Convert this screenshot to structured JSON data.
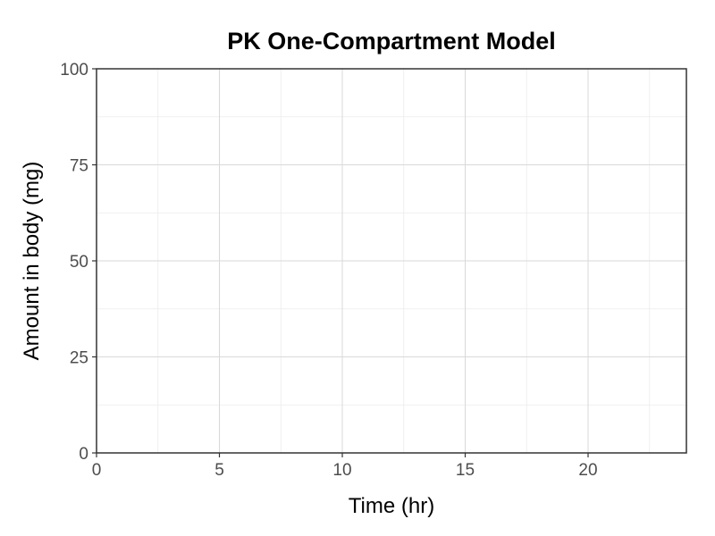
{
  "chart_data": {
    "type": "line",
    "title": "PK One-Compartment Model",
    "xlabel": "Time (hr)",
    "ylabel": "Amount in body (mg)",
    "xlim": [
      0,
      24
    ],
    "ylim": [
      0,
      100
    ],
    "x_ticks": [
      0,
      5,
      10,
      15,
      20
    ],
    "y_ticks": [
      0,
      25,
      50,
      75,
      100
    ],
    "x_minor_ticks": [
      2.5,
      7.5,
      12.5,
      17.5,
      22.5
    ],
    "y_minor_ticks": [
      12.5,
      37.5,
      62.5,
      87.5
    ],
    "grid": true,
    "series": []
  },
  "colors": {
    "background": "#ffffff",
    "grid_major": "#d9d9d9",
    "grid_minor": "#ececec",
    "panel_border": "#333333",
    "tick_text": "#4d4d4d",
    "text": "#000000"
  }
}
